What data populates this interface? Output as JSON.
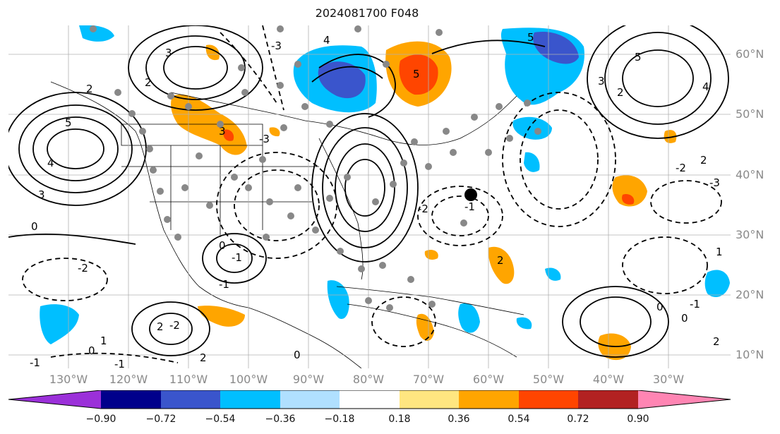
{
  "title": "2024081700 F048",
  "lat_labels": [
    "60°N",
    "50°N",
    "40°N",
    "30°N",
    "20°N",
    "10°N"
  ],
  "lon_labels": [
    "130°W",
    "120°W",
    "110°W",
    "100°W",
    "90°W",
    "80°W",
    "70°W",
    "60°W",
    "50°W",
    "40°W",
    "30°W"
  ],
  "colorbar": {
    "ticks": [
      "−0.90",
      "−0.72",
      "−0.54",
      "−0.36",
      "−0.18",
      "0.18",
      "0.36",
      "0.54",
      "0.72",
      "0.90"
    ],
    "colors": [
      "#9b30d9",
      "#00008b",
      "#3a55cc",
      "#00bfff",
      "#b0e0ff",
      "#ffffff",
      "#ffe680",
      "#ffa500",
      "#ff4500",
      "#b22222",
      "#ff85b3"
    ]
  },
  "contour_labels": [
    "3",
    "2",
    "5",
    "4",
    "3",
    "2",
    "0",
    "-2",
    "3",
    "4",
    "5",
    "5",
    "-1",
    "0",
    "-3",
    "2",
    "5",
    "3",
    "4",
    "2",
    "1",
    "-2",
    "-1",
    "0",
    "-1",
    "2",
    "-1",
    "-2",
    "-1",
    "0",
    "-2",
    "2",
    "-3",
    "1",
    "-3",
    "0",
    "2",
    "-1",
    "0",
    "2"
  ],
  "colors": {
    "blue": "#00bfff",
    "darkblue": "#3a55cc",
    "orange": "#ffa500",
    "red": "#ff4500",
    "darkred": "#b22222",
    "grid": "#b0b0b0"
  }
}
